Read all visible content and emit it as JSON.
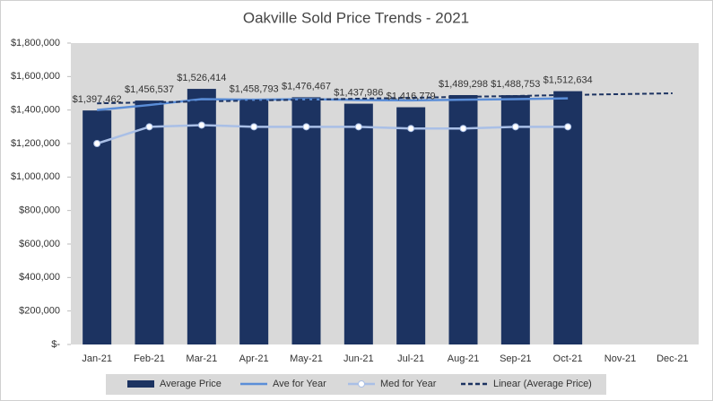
{
  "chart_data": {
    "type": "bar",
    "title": "Oakville Sold Price Trends - 2021",
    "categories": [
      "Jan-21",
      "Feb-21",
      "Mar-21",
      "Apr-21",
      "May-21",
      "Jun-21",
      "Jul-21",
      "Aug-21",
      "Sep-21",
      "Oct-21",
      "Nov-21",
      "Dec-21"
    ],
    "series": [
      {
        "name": "Average Price",
        "type": "bar",
        "color": "#1c3361",
        "values": [
          1397462,
          1456537,
          1526414,
          1458793,
          1476467,
          1437986,
          1416779,
          1489298,
          1488753,
          1512634,
          null,
          null
        ],
        "value_labels": [
          "$1,397,462",
          "$1,456,537",
          "$1,526,414",
          "$1,458,793",
          "$1,476,467",
          "$1,437,986",
          "$1,416,779",
          "$1,489,298",
          "$1,488,753",
          "$1,512,634",
          null,
          null
        ]
      },
      {
        "name": "Ave for Year",
        "type": "line",
        "color": "#5b8ed8",
        "values": [
          1400000,
          1430000,
          1465000,
          1462000,
          1465000,
          1460000,
          1458000,
          1462000,
          1465000,
          1470000,
          null,
          null
        ]
      },
      {
        "name": "Med for Year",
        "type": "line",
        "color": "#a9bfe6",
        "markers": true,
        "values": [
          1200000,
          1300000,
          1310000,
          1300000,
          1300000,
          1300000,
          1290000,
          1290000,
          1300000,
          1300000,
          null,
          null
        ]
      },
      {
        "name": "Linear (Average Price)",
        "type": "line",
        "color": "#1c3361",
        "dash": true,
        "values": [
          1440000,
          1446000,
          1451000,
          1457000,
          1462000,
          1468000,
          1473000,
          1479000,
          1484000,
          1490000,
          1495000,
          1500000
        ]
      }
    ],
    "ylim": [
      0,
      1800000
    ],
    "yticks": [
      {
        "value": 0,
        "label": "$-"
      },
      {
        "value": 200000,
        "label": "$200,000"
      },
      {
        "value": 400000,
        "label": "$400,000"
      },
      {
        "value": 600000,
        "label": "$600,000"
      },
      {
        "value": 800000,
        "label": "$800,000"
      },
      {
        "value": 1000000,
        "label": "$1,000,000"
      },
      {
        "value": 1200000,
        "label": "$1,200,000"
      },
      {
        "value": 1400000,
        "label": "$1,400,000"
      },
      {
        "value": 1600000,
        "label": "$1,600,000"
      },
      {
        "value": 1800000,
        "label": "$1,800,000"
      }
    ],
    "legend": "bottom"
  }
}
